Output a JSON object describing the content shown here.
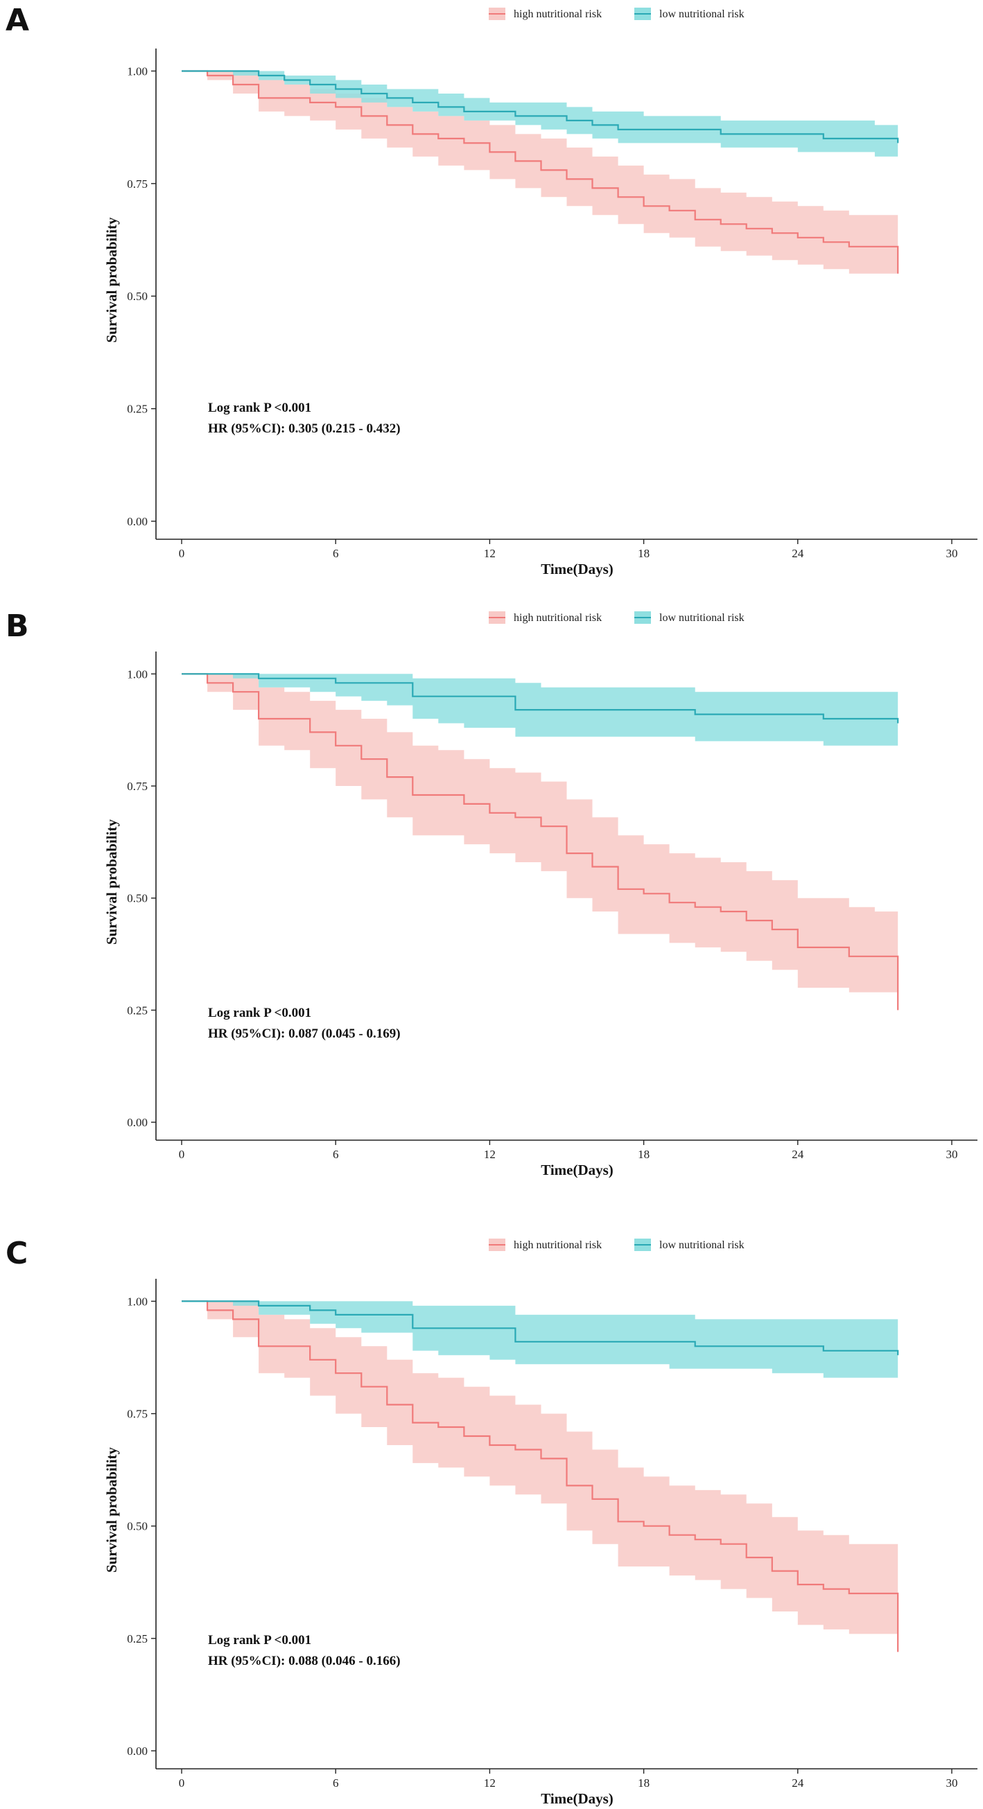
{
  "colors": {
    "high": "#f07a7a",
    "high_band": "#f8c9c6",
    "low": "#2aa9b5",
    "low_band": "#8fdfe0"
  },
  "legend": {
    "high_label": "high nutritional risk",
    "low_label": "low nutritional risk"
  },
  "chart_data": [
    {
      "panel": "A",
      "type": "line",
      "title": "",
      "xlabel": "Time(Days)",
      "ylabel": "Survival probability",
      "xlim": [
        -1,
        31
      ],
      "ylim": [
        -0.04,
        1.05
      ],
      "xticks": [
        0,
        6,
        12,
        18,
        24,
        30
      ],
      "xtick_labels": [
        "0",
        "6",
        "12",
        "18",
        "24",
        "30"
      ],
      "yticks": [
        0,
        0.25,
        0.5,
        0.75,
        1.0
      ],
      "ytick_labels": [
        "0.00",
        "0.25",
        "0.50",
        "0.75",
        "1.00"
      ],
      "annotation": [
        "Log rank P <0.001",
        "HR (95%CI): 0.305 (0.215 - 0.432)"
      ],
      "series": [
        {
          "name": "high nutritional risk",
          "x": [
            0,
            1,
            2,
            3,
            4,
            5,
            6,
            7,
            8,
            9,
            10,
            11,
            12,
            13,
            14,
            15,
            16,
            17,
            18,
            19,
            20,
            21,
            22,
            23,
            24,
            25,
            26,
            27,
            27.9
          ],
          "y": [
            1.0,
            0.99,
            0.97,
            0.94,
            0.94,
            0.93,
            0.92,
            0.9,
            0.88,
            0.86,
            0.85,
            0.84,
            0.82,
            0.8,
            0.78,
            0.76,
            0.74,
            0.72,
            0.7,
            0.69,
            0.67,
            0.66,
            0.65,
            0.64,
            0.63,
            0.62,
            0.61,
            0.61,
            0.55
          ],
          "lower": [
            1.0,
            0.98,
            0.95,
            0.91,
            0.9,
            0.89,
            0.87,
            0.85,
            0.83,
            0.81,
            0.79,
            0.78,
            0.76,
            0.74,
            0.72,
            0.7,
            0.68,
            0.66,
            0.64,
            0.63,
            0.61,
            0.6,
            0.59,
            0.58,
            0.57,
            0.56,
            0.55,
            0.55,
            0.55
          ],
          "upper": [
            1.0,
            1.0,
            1.0,
            0.98,
            0.97,
            0.96,
            0.95,
            0.94,
            0.92,
            0.91,
            0.9,
            0.89,
            0.88,
            0.86,
            0.85,
            0.83,
            0.81,
            0.79,
            0.77,
            0.76,
            0.74,
            0.73,
            0.72,
            0.71,
            0.7,
            0.69,
            0.68,
            0.68,
            0.68
          ]
        },
        {
          "name": "low nutritional risk",
          "x": [
            0,
            1,
            2,
            3,
            4,
            5,
            6,
            7,
            8,
            9,
            10,
            11,
            12,
            13,
            14,
            15,
            16,
            17,
            18,
            19,
            20,
            21,
            22,
            23,
            24,
            25,
            26,
            27,
            27.9
          ],
          "y": [
            1.0,
            1.0,
            1.0,
            0.99,
            0.98,
            0.97,
            0.96,
            0.95,
            0.94,
            0.93,
            0.92,
            0.91,
            0.91,
            0.9,
            0.9,
            0.89,
            0.88,
            0.87,
            0.87,
            0.87,
            0.87,
            0.86,
            0.86,
            0.86,
            0.86,
            0.85,
            0.85,
            0.85,
            0.84
          ],
          "lower": [
            1.0,
            1.0,
            0.99,
            0.98,
            0.97,
            0.95,
            0.94,
            0.93,
            0.92,
            0.91,
            0.9,
            0.89,
            0.89,
            0.88,
            0.87,
            0.86,
            0.85,
            0.84,
            0.84,
            0.84,
            0.84,
            0.83,
            0.83,
            0.83,
            0.82,
            0.82,
            0.82,
            0.81,
            0.81
          ],
          "upper": [
            1.0,
            1.0,
            1.0,
            1.0,
            0.99,
            0.99,
            0.98,
            0.97,
            0.96,
            0.96,
            0.95,
            0.94,
            0.93,
            0.93,
            0.93,
            0.92,
            0.91,
            0.91,
            0.9,
            0.9,
            0.9,
            0.89,
            0.89,
            0.89,
            0.89,
            0.89,
            0.89,
            0.88,
            0.88
          ]
        }
      ]
    },
    {
      "panel": "B",
      "type": "line",
      "title": "",
      "xlabel": "Time(Days)",
      "ylabel": "Survival probability",
      "xlim": [
        -1,
        31
      ],
      "ylim": [
        -0.04,
        1.05
      ],
      "xticks": [
        0,
        6,
        12,
        18,
        24,
        30
      ],
      "xtick_labels": [
        "0",
        "6",
        "12",
        "18",
        "24",
        "30"
      ],
      "yticks": [
        0,
        0.25,
        0.5,
        0.75,
        1.0
      ],
      "ytick_labels": [
        "0.00",
        "0.25",
        "0.50",
        "0.75",
        "1.00"
      ],
      "annotation": [
        "Log rank P <0.001",
        "HR (95%CI): 0.087 (0.045 - 0.169)"
      ],
      "series": [
        {
          "name": "high nutritional risk",
          "x": [
            0,
            1,
            2,
            3,
            4,
            5,
            6,
            7,
            8,
            9,
            10,
            11,
            12,
            13,
            14,
            15,
            16,
            17,
            18,
            19,
            20,
            21,
            22,
            23,
            24,
            25,
            26,
            27,
            27.9
          ],
          "y": [
            1.0,
            0.98,
            0.96,
            0.9,
            0.9,
            0.87,
            0.84,
            0.81,
            0.77,
            0.73,
            0.73,
            0.71,
            0.69,
            0.68,
            0.66,
            0.6,
            0.57,
            0.52,
            0.51,
            0.49,
            0.48,
            0.47,
            0.45,
            0.43,
            0.39,
            0.39,
            0.37,
            0.37,
            0.25
          ],
          "lower": [
            1.0,
            0.96,
            0.92,
            0.84,
            0.83,
            0.79,
            0.75,
            0.72,
            0.68,
            0.64,
            0.64,
            0.62,
            0.6,
            0.58,
            0.56,
            0.5,
            0.47,
            0.42,
            0.42,
            0.4,
            0.39,
            0.38,
            0.36,
            0.34,
            0.3,
            0.3,
            0.29,
            0.29,
            0.29
          ],
          "upper": [
            1.0,
            1.0,
            1.0,
            0.97,
            0.96,
            0.94,
            0.92,
            0.9,
            0.87,
            0.84,
            0.83,
            0.81,
            0.79,
            0.78,
            0.76,
            0.72,
            0.68,
            0.64,
            0.62,
            0.6,
            0.59,
            0.58,
            0.56,
            0.54,
            0.5,
            0.5,
            0.48,
            0.47,
            0.47
          ]
        },
        {
          "name": "low nutritional risk",
          "x": [
            0,
            1,
            2,
            3,
            4,
            5,
            6,
            7,
            8,
            9,
            10,
            11,
            12,
            13,
            14,
            15,
            16,
            17,
            18,
            19,
            20,
            21,
            22,
            23,
            24,
            25,
            26,
            27,
            27.9
          ],
          "y": [
            1.0,
            1.0,
            1.0,
            0.99,
            0.99,
            0.99,
            0.98,
            0.98,
            0.98,
            0.95,
            0.95,
            0.95,
            0.95,
            0.92,
            0.92,
            0.92,
            0.92,
            0.92,
            0.92,
            0.92,
            0.91,
            0.91,
            0.91,
            0.91,
            0.91,
            0.9,
            0.9,
            0.9,
            0.89
          ],
          "lower": [
            1.0,
            1.0,
            0.99,
            0.97,
            0.97,
            0.96,
            0.95,
            0.94,
            0.93,
            0.9,
            0.89,
            0.88,
            0.88,
            0.86,
            0.86,
            0.86,
            0.86,
            0.86,
            0.86,
            0.86,
            0.85,
            0.85,
            0.85,
            0.85,
            0.85,
            0.84,
            0.84,
            0.84,
            0.84
          ],
          "upper": [
            1.0,
            1.0,
            1.0,
            1.0,
            1.0,
            1.0,
            1.0,
            1.0,
            1.0,
            0.99,
            0.99,
            0.99,
            0.99,
            0.98,
            0.97,
            0.97,
            0.97,
            0.97,
            0.97,
            0.97,
            0.96,
            0.96,
            0.96,
            0.96,
            0.96,
            0.96,
            0.96,
            0.96,
            0.96
          ]
        }
      ]
    },
    {
      "panel": "C",
      "type": "line",
      "title": "",
      "xlabel": "Time(Days)",
      "ylabel": "Survival probability",
      "xlim": [
        -1,
        31
      ],
      "ylim": [
        -0.04,
        1.05
      ],
      "xticks": [
        0,
        6,
        12,
        18,
        24,
        30
      ],
      "xtick_labels": [
        "0",
        "6",
        "12",
        "18",
        "24",
        "30"
      ],
      "yticks": [
        0,
        0.25,
        0.5,
        0.75,
        1.0
      ],
      "ytick_labels": [
        "0.00",
        "0.25",
        "0.50",
        "0.75",
        "1.00"
      ],
      "annotation": [
        "Log rank P <0.001",
        "HR (95%CI): 0.088 (0.046 - 0.166)"
      ],
      "series": [
        {
          "name": "high nutritional risk",
          "x": [
            0,
            1,
            2,
            3,
            4,
            5,
            6,
            7,
            8,
            9,
            10,
            11,
            12,
            13,
            14,
            15,
            16,
            17,
            18,
            19,
            20,
            21,
            22,
            23,
            24,
            25,
            26,
            27,
            27.9
          ],
          "y": [
            1.0,
            0.98,
            0.96,
            0.9,
            0.9,
            0.87,
            0.84,
            0.81,
            0.77,
            0.73,
            0.72,
            0.7,
            0.68,
            0.67,
            0.65,
            0.59,
            0.56,
            0.51,
            0.5,
            0.48,
            0.47,
            0.46,
            0.43,
            0.4,
            0.37,
            0.36,
            0.35,
            0.35,
            0.22
          ],
          "lower": [
            1.0,
            0.96,
            0.92,
            0.84,
            0.83,
            0.79,
            0.75,
            0.72,
            0.68,
            0.64,
            0.63,
            0.61,
            0.59,
            0.57,
            0.55,
            0.49,
            0.46,
            0.41,
            0.41,
            0.39,
            0.38,
            0.36,
            0.34,
            0.31,
            0.28,
            0.27,
            0.26,
            0.26,
            0.26
          ],
          "upper": [
            1.0,
            1.0,
            1.0,
            0.97,
            0.96,
            0.94,
            0.92,
            0.9,
            0.87,
            0.84,
            0.83,
            0.81,
            0.79,
            0.77,
            0.75,
            0.71,
            0.67,
            0.63,
            0.61,
            0.59,
            0.58,
            0.57,
            0.55,
            0.52,
            0.49,
            0.48,
            0.46,
            0.46,
            0.46
          ]
        },
        {
          "name": "low nutritional risk",
          "x": [
            0,
            1,
            2,
            3,
            4,
            5,
            6,
            7,
            8,
            9,
            10,
            11,
            12,
            13,
            14,
            15,
            16,
            17,
            18,
            19,
            20,
            21,
            22,
            23,
            24,
            25,
            26,
            27,
            27.9
          ],
          "y": [
            1.0,
            1.0,
            1.0,
            0.99,
            0.99,
            0.98,
            0.97,
            0.97,
            0.97,
            0.94,
            0.94,
            0.94,
            0.94,
            0.91,
            0.91,
            0.91,
            0.91,
            0.91,
            0.91,
            0.91,
            0.9,
            0.9,
            0.9,
            0.9,
            0.9,
            0.89,
            0.89,
            0.89,
            0.88
          ],
          "lower": [
            1.0,
            1.0,
            0.99,
            0.97,
            0.97,
            0.95,
            0.94,
            0.93,
            0.93,
            0.89,
            0.88,
            0.88,
            0.87,
            0.86,
            0.86,
            0.86,
            0.86,
            0.86,
            0.86,
            0.85,
            0.85,
            0.85,
            0.85,
            0.84,
            0.84,
            0.83,
            0.83,
            0.83,
            0.83
          ],
          "upper": [
            1.0,
            1.0,
            1.0,
            1.0,
            1.0,
            1.0,
            1.0,
            1.0,
            1.0,
            0.99,
            0.99,
            0.99,
            0.99,
            0.97,
            0.97,
            0.97,
            0.97,
            0.97,
            0.97,
            0.97,
            0.96,
            0.96,
            0.96,
            0.96,
            0.96,
            0.96,
            0.96,
            0.96,
            0.96
          ]
        }
      ]
    }
  ]
}
